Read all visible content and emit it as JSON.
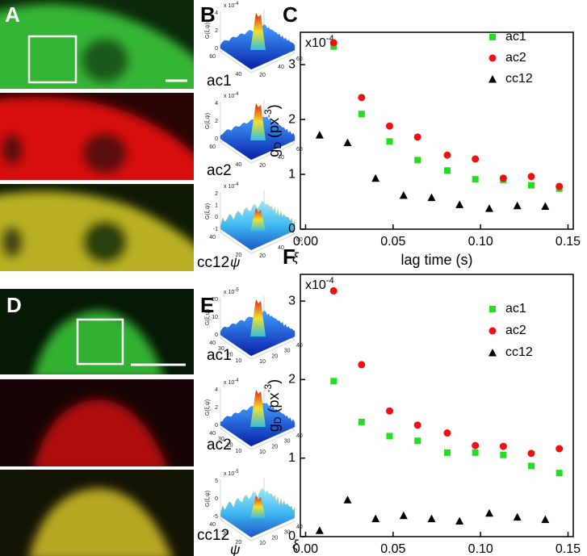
{
  "figure_labels": {
    "A": "A",
    "B": "B",
    "D": "D",
    "E": "E"
  },
  "row_labels_top": [
    "ac1",
    "ac2",
    "cc12"
  ],
  "row_labels_bottom": [
    "ac1",
    "ac2",
    "cc12"
  ],
  "surfaces": [
    {
      "multiplier": "x 10",
      "exponent": "-4",
      "zlabel": "G(ξ,ψ)",
      "zticks": [
        0,
        2,
        4
      ],
      "psi_ticks": [
        60,
        40
      ],
      "xi_ticks": [
        20,
        40,
        60
      ]
    },
    {
      "multiplier": "x 10",
      "exponent": "-4",
      "zlabel": "G(ξ,ψ)",
      "zticks": [
        0,
        2,
        4
      ],
      "psi_ticks": [
        60,
        40
      ],
      "xi_ticks": [
        20,
        40,
        60
      ]
    },
    {
      "multiplier": "x 10",
      "exponent": "-4",
      "zlabel": "G(ξ,ψ)",
      "zticks": [
        -1,
        0,
        1,
        2
      ],
      "psi_ticks": [
        40,
        20
      ],
      "xi_ticks": [
        20,
        40,
        60
      ],
      "psi_label": "ψ",
      "xi_label": "ξ"
    },
    {
      "multiplier": "x 10",
      "exponent": "-5",
      "zlabel": "G(ξ,ψ)",
      "zticks": [
        0,
        10,
        20
      ],
      "psi_ticks": [
        40,
        30,
        20,
        10
      ],
      "xi_ticks": [
        10,
        20,
        30,
        40
      ]
    },
    {
      "multiplier": "x 10",
      "exponent": "-4",
      "zlabel": "G(ξ,ψ)",
      "zticks": [
        0,
        2,
        4
      ],
      "psi_ticks": [
        40,
        30,
        20,
        10
      ],
      "xi_ticks": [
        10,
        20,
        30,
        40
      ]
    },
    {
      "multiplier": "x 10",
      "exponent": "-5",
      "zlabel": "G(ξ,ψ)",
      "zticks": [
        -5,
        0,
        5
      ],
      "psi_ticks": [
        40,
        30,
        20
      ],
      "xi_ticks": [
        10,
        20,
        30,
        40
      ],
      "psi_label": "ψ",
      "xi_label": "ξ"
    }
  ],
  "chart_data": [
    {
      "type": "scatter",
      "panel": "C",
      "multiplier": {
        "text": "x10",
        "sup": "-4"
      },
      "y_label": {
        "base": "g",
        "sub": "D",
        "unit": " (px",
        "sup": "-3",
        "close": ")"
      },
      "x_label": "lag time (s)",
      "xlim": [
        -0.003,
        0.153
      ],
      "ylim": [
        0,
        3.59
      ],
      "xticks": [
        {
          "value": 0,
          "label": "0.00"
        },
        {
          "value": 0.05,
          "label": "0.05"
        },
        {
          "value": 0.1,
          "label": "0.10"
        },
        {
          "value": 0.15,
          "label": "0.15"
        }
      ],
      "yticks": [
        0,
        1,
        2,
        3
      ],
      "legend": "upper right",
      "series": [
        {
          "name": "ac1",
          "color": "#22dd22",
          "marker": "square",
          "x": [
            0.016,
            0.032,
            0.048,
            0.064,
            0.081,
            0.097,
            0.113,
            0.129,
            0.145
          ],
          "values": [
            3.33,
            2.1,
            1.6,
            1.26,
            1.07,
            0.91,
            0.9,
            0.8,
            0.74
          ]
        },
        {
          "name": "ac2",
          "color": "#ee1111",
          "marker": "circle",
          "x": [
            0.016,
            0.032,
            0.048,
            0.064,
            0.081,
            0.097,
            0.113,
            0.129,
            0.145
          ],
          "values": [
            3.4,
            2.4,
            1.88,
            1.68,
            1.35,
            1.28,
            0.93,
            0.96,
            0.78
          ]
        },
        {
          "name": "cc12",
          "color": "#000000",
          "marker": "triangle",
          "x": [
            0.008,
            0.024,
            0.04,
            0.056,
            0.072,
            0.088,
            0.105,
            0.121,
            0.137
          ],
          "values": [
            1.72,
            1.58,
            0.93,
            0.62,
            0.58,
            0.45,
            0.38,
            0.43,
            0.42
          ]
        }
      ]
    },
    {
      "type": "scatter",
      "panel": "F",
      "multiplier": {
        "text": "x10",
        "sup": "-4"
      },
      "y_label": {
        "base": "g",
        "sub": "D",
        "unit": " (px",
        "sup": "-3",
        "close": ")"
      },
      "x_label": "lag time (s)",
      "xlim": [
        -0.003,
        0.153
      ],
      "ylim": [
        0,
        3.34
      ],
      "xticks": [
        {
          "value": 0,
          "label": "0.00"
        },
        {
          "value": 0.05,
          "label": "0.05"
        },
        {
          "value": 0.1,
          "label": "0.10"
        },
        {
          "value": 0.15,
          "label": "0.15"
        }
      ],
      "yticks": [
        0,
        1,
        2,
        3
      ],
      "legend": "upper right",
      "series": [
        {
          "name": "ac1",
          "color": "#22dd22",
          "marker": "square",
          "x": [
            0.016,
            0.032,
            0.048,
            0.064,
            0.081,
            0.097,
            0.113,
            0.129,
            0.145
          ],
          "values": [
            1.98,
            1.46,
            1.28,
            1.22,
            1.07,
            1.07,
            1.04,
            0.9,
            0.81
          ]
        },
        {
          "name": "ac2",
          "color": "#ee1111",
          "marker": "circle",
          "x": [
            0.016,
            0.032,
            0.048,
            0.064,
            0.081,
            0.097,
            0.113,
            0.129,
            0.145
          ],
          "values": [
            3.13,
            2.19,
            1.6,
            1.42,
            1.32,
            1.16,
            1.15,
            1.06,
            1.12
          ]
        },
        {
          "name": "cc12",
          "color": "#000000",
          "marker": "triangle",
          "x": [
            0.008,
            0.024,
            0.04,
            0.056,
            0.072,
            0.088,
            0.105,
            0.121,
            0.137
          ],
          "values": [
            0.08,
            0.47,
            0.23,
            0.27,
            0.23,
            0.2,
            0.3,
            0.25,
            0.22
          ]
        }
      ]
    }
  ]
}
